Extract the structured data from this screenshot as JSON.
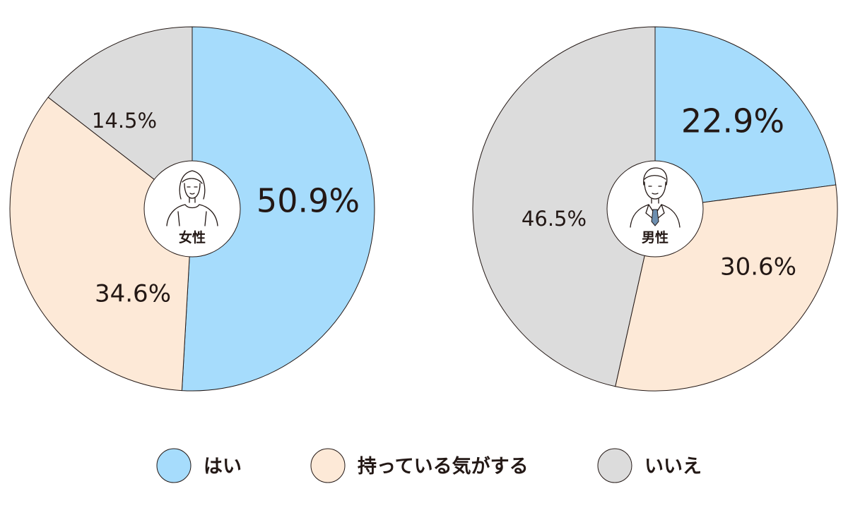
{
  "chart_data": [
    {
      "type": "pie",
      "center_label": "女性",
      "center_icon": "woman-avatar-icon",
      "slices": [
        {
          "label": "はい",
          "value": 50.9,
          "display": "50.9%"
        },
        {
          "label": "持っている気がする",
          "value": 34.6,
          "display": "34.6%"
        },
        {
          "label": "いいえ",
          "value": 14.5,
          "display": "14.5%"
        }
      ]
    },
    {
      "type": "pie",
      "center_label": "男性",
      "center_icon": "man-avatar-icon",
      "slices": [
        {
          "label": "はい",
          "value": 22.9,
          "display": "22.9%"
        },
        {
          "label": "持っている気がする",
          "value": 30.6,
          "display": "30.6%"
        },
        {
          "label": "いいえ",
          "value": 46.5,
          "display": "46.5%"
        }
      ]
    }
  ],
  "legend": [
    {
      "label": "はい",
      "color": "#a6dcfc"
    },
    {
      "label": "持っている気がする",
      "color": "#fde9d7"
    },
    {
      "label": "いいえ",
      "color": "#dcdcdc"
    }
  ],
  "colors": {
    "はい": "#a6dcfc",
    "持っている気がする": "#fde9d7",
    "いいえ": "#dcdcdc",
    "outline": "#231815",
    "text": "#231815"
  }
}
